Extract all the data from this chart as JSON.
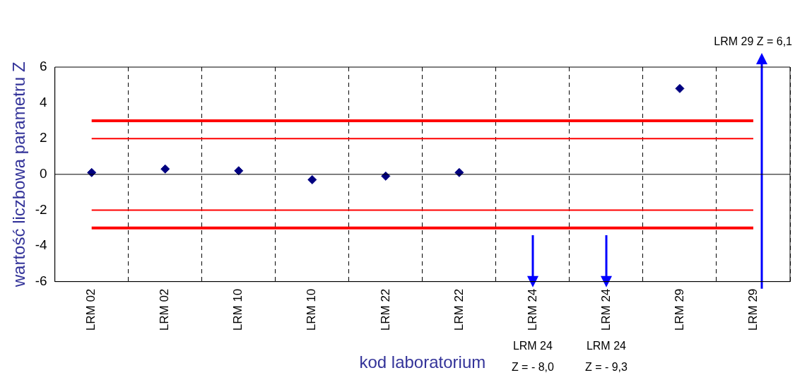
{
  "chart_data": {
    "type": "scatter",
    "xlabel": "kod laboratorium",
    "ylabel": "wartość liczbowa parametru Z",
    "categories": [
      "LRM 02",
      "LRM 02",
      "LRM 10",
      "LRM 10",
      "LRM 22",
      "LRM 22",
      "LRM 24",
      "LRM 24",
      "LRM 29",
      "LRM 29"
    ],
    "series": [
      {
        "color": "#000080",
        "marker": "diamond",
        "values": [
          0.1,
          0.3,
          0.2,
          -0.3,
          -0.1,
          0.1,
          null,
          null,
          4.8,
          null
        ]
      },
      {
        "type": "line",
        "color": "#ff0000",
        "marker": "none",
        "values": [
          3,
          3,
          3,
          3,
          3,
          3,
          3,
          3,
          3,
          3
        ]
      },
      {
        "type": "line",
        "color": "#ff0000",
        "marker": "none",
        "values": [
          -3,
          -3,
          -3,
          -3,
          -3,
          -3,
          -3,
          -3,
          -3,
          -3
        ]
      },
      {
        "type": "line",
        "color": "#ff0000",
        "marker": "none",
        "values": [
          2,
          2,
          2,
          2,
          2,
          2,
          2,
          2,
          2,
          2
        ]
      },
      {
        "type": "line",
        "color": "#ff0000",
        "marker": "none",
        "values": [
          -2,
          -2,
          -2,
          -2,
          -2,
          -2,
          -2,
          -2,
          -2,
          -2
        ]
      }
    ],
    "ylim": [
      -6,
      6
    ],
    "yticks": [
      -6,
      -4,
      -2,
      0,
      2,
      4,
      6
    ],
    "grid": "x",
    "legend": false,
    "ref_lines": [
      {
        "axis": "y",
        "value": 0,
        "color": "#000000"
      }
    ],
    "annotations": [
      "LRM 24 Z = - 8,0",
      "LRM 24 Z = - 9,3",
      "LRM 29 Z = 6,1"
    ]
  }
}
